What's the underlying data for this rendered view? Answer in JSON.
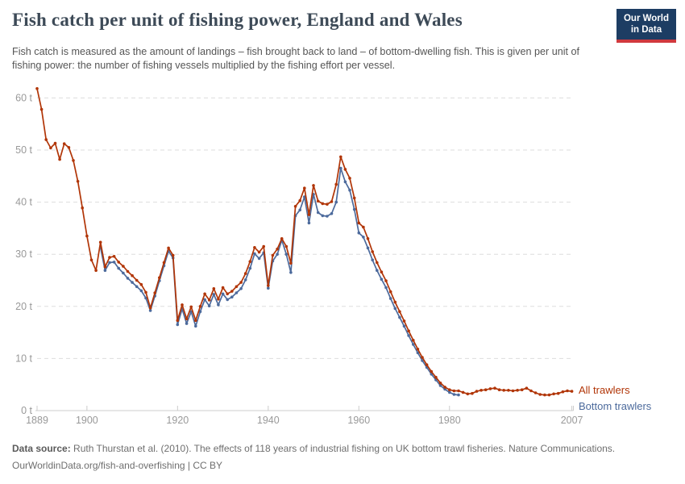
{
  "header": {
    "title": "Fish catch per unit of fishing power, England and Wales",
    "subtitle": "Fish catch is measured as the amount of landings – fish brought back to land – of bottom-dwelling fish. This is given per unit of fishing power: the number of fishing vessels multiplied by the fishing effort per vessel.",
    "logo": {
      "line1": "Our World",
      "line2": "in Data"
    }
  },
  "footer": {
    "source_label": "Data source:",
    "source_text": " Ruth Thurstan et al. (2010). The effects of 118 years of industrial fishing on UK bottom trawl fisheries. Nature Communications.",
    "link": "OurWorldinData.org/fish-and-overfishing",
    "separator": " | ",
    "license": "CC BY"
  },
  "colors": {
    "all_trawlers": "#b13507",
    "bottom_trawlers": "#4c6a9c",
    "grid": "#dddddd",
    "axis": "#cccccc",
    "tick_text": "#999999",
    "title_text": "#3d4a57",
    "logo_bg": "#1d3d63",
    "logo_stripe": "#d0393e"
  },
  "chart_data": {
    "type": "line",
    "title": "Fish catch per unit of fishing power, England and Wales",
    "xlabel": "",
    "ylabel": "",
    "y_tick_suffix": " t",
    "x_ticks": [
      1889,
      1900,
      1920,
      1940,
      1960,
      1980,
      2007
    ],
    "y_ticks": [
      0,
      10,
      20,
      30,
      40,
      50,
      60
    ],
    "xlim": [
      1889,
      2007
    ],
    "ylim": [
      0,
      62.5
    ],
    "grid": "horizontal-dashed",
    "legend_position": "right-end-of-lines",
    "units": "tonnes per unit of fishing power",
    "series": [
      {
        "name": "All trawlers",
        "color": "#b13507",
        "start_year": 1889,
        "end_year": 2007,
        "values": [
          61.8,
          57.8,
          52.0,
          50.4,
          51.3,
          48.2,
          51.2,
          50.5,
          48.0,
          44.0,
          38.9,
          33.5,
          28.9,
          26.9,
          32.3,
          27.6,
          29.4,
          29.6,
          28.5,
          27.7,
          26.7,
          25.9,
          25.0,
          24.2,
          22.7,
          19.7,
          22.6,
          25.5,
          28.4,
          31.2,
          29.8,
          17.3,
          20.3,
          17.6,
          19.9,
          17.3,
          20.0,
          22.4,
          21.2,
          23.4,
          21.4,
          23.6,
          22.4,
          22.9,
          23.8,
          24.6,
          26.3,
          28.6,
          31.3,
          30.4,
          31.5,
          24.0,
          29.8,
          31.0,
          33.0,
          31.5,
          28.3,
          39.2,
          40.3,
          42.7,
          37.6,
          43.2,
          40.2,
          39.7,
          39.6,
          40.1,
          43.4,
          48.7,
          46.3,
          44.6,
          40.8,
          36.0,
          35.2,
          33.0,
          30.5,
          28.4,
          26.6,
          24.9,
          22.8,
          20.8,
          19.0,
          17.2,
          15.3,
          13.5,
          11.8,
          10.2,
          8.8,
          7.5,
          6.4,
          5.3,
          4.5,
          4.0,
          3.8,
          3.8,
          3.5,
          3.2,
          3.3,
          3.7,
          3.9,
          4.0,
          4.2,
          4.3,
          4.0,
          3.9,
          3.9,
          3.8,
          3.9,
          4.0,
          4.3,
          3.8,
          3.4,
          3.1,
          3.0,
          3.0,
          3.2,
          3.3,
          3.6,
          3.8,
          3.7
        ]
      },
      {
        "name": "Bottom trawlers",
        "color": "#4c6a9c",
        "start_year": 1903,
        "end_year": 1982,
        "values": [
          31.3,
          26.9,
          28.4,
          28.5,
          27.3,
          26.4,
          25.4,
          24.6,
          23.8,
          23.0,
          21.6,
          19.2,
          22.0,
          24.9,
          27.8,
          30.6,
          29.3,
          16.5,
          19.5,
          16.7,
          19.0,
          16.2,
          19.0,
          21.3,
          20.1,
          22.3,
          20.3,
          22.4,
          21.3,
          21.8,
          22.6,
          23.4,
          25.1,
          27.3,
          30.1,
          29.2,
          30.3,
          23.5,
          28.7,
          30.0,
          32.7,
          30.0,
          26.5,
          37.4,
          38.5,
          41.0,
          36.0,
          41.5,
          38.0,
          37.4,
          37.3,
          37.8,
          40.0,
          46.5,
          43.9,
          42.3,
          38.6,
          34.1,
          33.3,
          31.2,
          28.9,
          26.9,
          25.2,
          23.6,
          21.5,
          19.6,
          17.9,
          16.2,
          14.4,
          12.7,
          11.1,
          9.6,
          8.3,
          7.0,
          5.9,
          4.8,
          4.1,
          3.5,
          3.1,
          3.0
        ]
      }
    ]
  }
}
